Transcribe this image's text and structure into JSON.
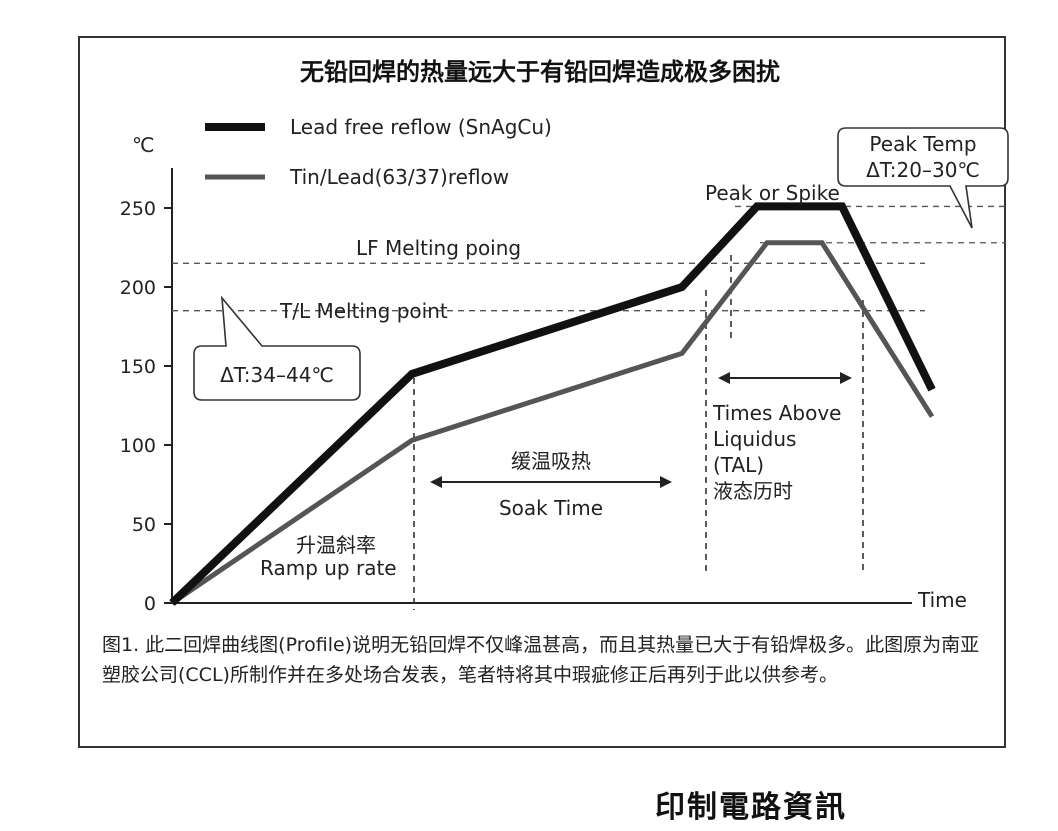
{
  "chart_data": {
    "type": "line",
    "title": "无铅回焊的热量远大于有铅回焊造成极多困扰",
    "ylabel": "℃",
    "xlabel": "Time",
    "ylim": [
      0,
      260
    ],
    "yticks": [
      0,
      50,
      100,
      150,
      200,
      250
    ],
    "series": [
      {
        "name": "Lead free reflow (SnAgCu)",
        "points": [
          [
            0,
            0
          ],
          [
            240,
            145
          ],
          [
            510,
            200
          ],
          [
            585,
            251
          ],
          [
            670,
            251
          ],
          [
            760,
            135
          ]
        ]
      },
      {
        "name": "Tin/Lead(63/37)reflow",
        "points": [
          [
            0,
            0
          ],
          [
            240,
            103
          ],
          [
            510,
            158
          ],
          [
            595,
            228
          ],
          [
            650,
            228
          ],
          [
            760,
            118
          ]
        ]
      }
    ],
    "reference_lines": [
      {
        "value": 251,
        "label": ""
      },
      {
        "value": 228,
        "label": ""
      },
      {
        "value": 215,
        "label": "LF Melting poing"
      },
      {
        "value": 185,
        "label": "T/L Melting point"
      }
    ],
    "annotations": {
      "peak": "Peak or Spike",
      "peak_temp_line1": "Peak Temp",
      "peak_temp_line2": "ΔT:20–30℃",
      "delta_melt": "ΔT:34–44℃",
      "soak_cn": "缓温吸热",
      "soak_en": "Soak Time",
      "ramp_cn": "升温斜率",
      "ramp_en": "Ramp up rate",
      "tal_1": "Times Above",
      "tal_2": "Liquidus",
      "tal_3": "(TAL)",
      "tal_cn": "液态历时"
    }
  },
  "caption": "图1. 此二回焊曲线图(Profile)说明无铅回焊不仅峰温甚高，而且其热量已大于有铅焊极多。此图原为南亚塑胶公司(CCL)所制作并在多处场合发表，笔者特将其中瑕疵修正后再列于此以供参考。",
  "footer": "印制電路資訊"
}
